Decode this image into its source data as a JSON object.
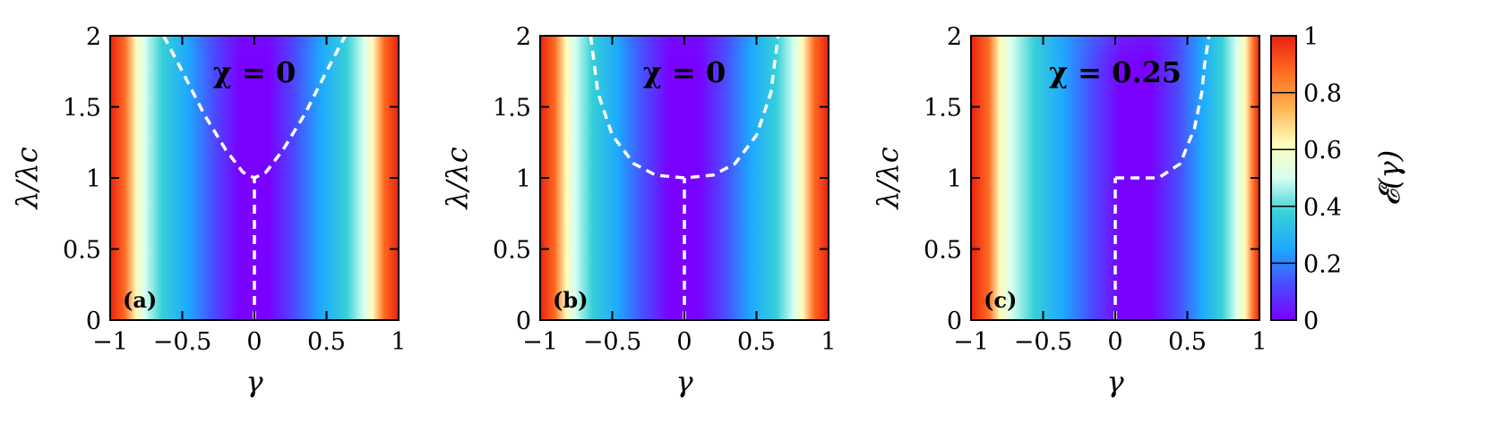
{
  "chart_data": [
    {
      "type": "heatmap",
      "panel_label": "(a)",
      "annotation": "χ = 0",
      "chi": 0,
      "xlabel": "γ",
      "ylabel": "λ/λc",
      "xlim": [
        -1,
        1
      ],
      "ylim": [
        0,
        2
      ],
      "xticks": [
        "−1",
        "−0.5",
        "0",
        "0.5",
        "1"
      ],
      "yticks": [
        "0",
        "0.5",
        "1",
        "1.5",
        "2"
      ],
      "boundary_line": {
        "style": "white dashed",
        "vertical_segment": {
          "gamma": 0,
          "lambda_range": [
            0,
            1
          ]
        },
        "curve_points": [
          [
            -0.63,
            2.0
          ],
          [
            -0.5,
            1.75
          ],
          [
            -0.35,
            1.45
          ],
          [
            -0.2,
            1.2
          ],
          [
            -0.08,
            1.04
          ],
          [
            0.0,
            1.0
          ],
          [
            0.08,
            1.04
          ],
          [
            0.2,
            1.2
          ],
          [
            0.35,
            1.45
          ],
          [
            0.5,
            1.75
          ],
          [
            0.63,
            2.0
          ]
        ]
      }
    },
    {
      "type": "heatmap",
      "panel_label": "(b)",
      "annotation": "χ = 0",
      "chi": 0,
      "xlabel": "γ",
      "ylabel": "λ/λc",
      "xlim": [
        -1,
        1
      ],
      "ylim": [
        0,
        2
      ],
      "xticks": [
        "−1",
        "−0.5",
        "0",
        "0.5",
        "1"
      ],
      "yticks": [
        "0",
        "0.5",
        "1",
        "1.5",
        "2"
      ],
      "boundary_line": {
        "style": "white dashed",
        "vertical_segment": {
          "gamma": 0,
          "lambda_range": [
            0,
            1
          ]
        },
        "curve_points": [
          [
            -0.65,
            2.0
          ],
          [
            -0.6,
            1.6
          ],
          [
            -0.5,
            1.3
          ],
          [
            -0.35,
            1.1
          ],
          [
            -0.2,
            1.02
          ],
          [
            0.0,
            1.0
          ],
          [
            0.2,
            1.02
          ],
          [
            0.35,
            1.1
          ],
          [
            0.5,
            1.3
          ],
          [
            0.6,
            1.6
          ],
          [
            0.65,
            2.0
          ]
        ]
      }
    },
    {
      "type": "heatmap",
      "panel_label": "(c)",
      "annotation": "χ = 0.25",
      "chi": 0.25,
      "xlabel": "γ",
      "ylabel": "λ/λc",
      "xlim": [
        -1,
        1
      ],
      "ylim": [
        0,
        2
      ],
      "xticks": [
        "−1",
        "−0.5",
        "0",
        "0.5",
        "1"
      ],
      "yticks": [
        "0",
        "0.5",
        "1",
        "1.5",
        "2"
      ],
      "boundary_line": {
        "style": "white dashed",
        "vertical_segment": {
          "gamma": 0,
          "lambda_range": [
            0,
            1
          ]
        },
        "curve_points": [
          [
            0.0,
            1.0
          ],
          [
            0.3,
            1.0
          ],
          [
            0.45,
            1.1
          ],
          [
            0.55,
            1.35
          ],
          [
            0.6,
            1.6
          ],
          [
            0.62,
            1.8
          ],
          [
            0.65,
            2.0
          ]
        ]
      }
    }
  ],
  "colorbar": {
    "label": "𝓔(γ)",
    "range": [
      0,
      1
    ],
    "ticks": [
      "0",
      "0.2",
      "0.4",
      "0.6",
      "0.8",
      "1"
    ],
    "colormap": [
      "#7a00ff",
      "#4a4cff",
      "#1ea8ff",
      "#36d0d8",
      "#d8fff0",
      "#fffbb8",
      "#ffb050",
      "#ff6a20",
      "#e82010"
    ]
  }
}
